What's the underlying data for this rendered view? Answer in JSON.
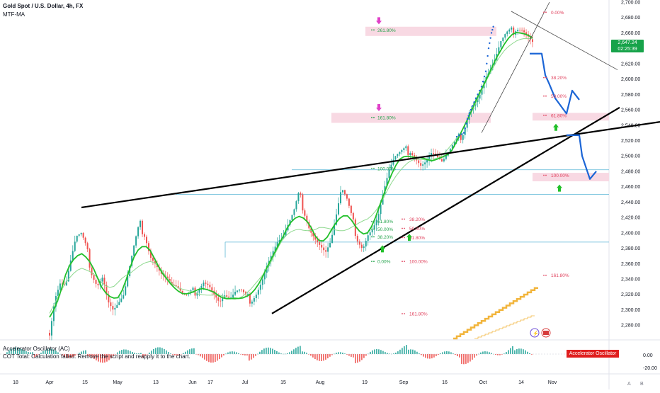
{
  "header": {
    "title": "Gold Spot / U.S. Dollar, 4h, FX",
    "subtitle": "MTF-MA"
  },
  "price_tag": {
    "price": "2,647.24",
    "countdown": "02:25:39"
  },
  "indicator": {
    "title": "Accelerator Oscillator (AC)",
    "error": "COT Total: Calculation failed. Remove the script and reapply it to the chart.",
    "badge": "Accelerator Oscillator (AC)"
  },
  "buttons": {
    "a": "A",
    "b": "B",
    "settings": "⚙"
  },
  "colors": {
    "up": "#26a69a",
    "down": "#ef5350",
    "ma": "#22c02a",
    "ma_slow": "#8fd98f",
    "trendline": "#000000",
    "projection": "#1b65d6",
    "fib_text": "#22a24a",
    "fib_text_red": "#e0405c",
    "fib_zone": "#f8d9e3",
    "hline": "#5bb6d6",
    "arrow_magenta": "#e040c8",
    "arrow_green": "#22c02a",
    "dots": "#1b65d6",
    "cot": "#f2b53c"
  },
  "chart_data": {
    "type": "candlestick",
    "title": "Gold Spot / U.S. Dollar, 4h, FX",
    "ylim": [
      2270,
      2700
    ],
    "y_ticks": [
      "2,700.00",
      "2,680.00",
      "2,660.00",
      "2,640.00",
      "2,620.00",
      "2,600.00",
      "2,580.00",
      "2,560.00",
      "2,540.00",
      "2,520.00",
      "2,500.00",
      "2,480.00",
      "2,460.00",
      "2,440.00",
      "2,420.00",
      "2,400.00",
      "2,380.00",
      "2,360.00",
      "2,340.00",
      "2,320.00",
      "2,300.00",
      "2,280.00"
    ],
    "x_ticks": [
      "18",
      "Apr",
      "15",
      "May",
      "13",
      "Jun",
      "17",
      "Jul",
      "15",
      "Aug",
      "19",
      "Sep",
      "16",
      "Oct",
      "14",
      "Nov"
    ],
    "close_path": [
      [
        0,
        2270
      ],
      [
        1,
        2316
      ],
      [
        2,
        2335
      ],
      [
        3,
        2330
      ],
      [
        4,
        2363
      ],
      [
        5,
        2392
      ],
      [
        6,
        2395
      ],
      [
        7,
        2376
      ],
      [
        8,
        2350
      ],
      [
        9,
        2335
      ],
      [
        10,
        2346
      ],
      [
        11,
        2313
      ],
      [
        12,
        2300
      ],
      [
        13,
        2308
      ],
      [
        14,
        2318
      ],
      [
        15,
        2350
      ],
      [
        16,
        2382
      ],
      [
        17,
        2410
      ],
      [
        18,
        2400
      ],
      [
        19,
        2373
      ],
      [
        20,
        2362
      ],
      [
        21,
        2349
      ],
      [
        22,
        2343
      ],
      [
        23,
        2332
      ],
      [
        24,
        2328
      ],
      [
        25,
        2318
      ],
      [
        26,
        2315
      ],
      [
        27,
        2322
      ],
      [
        28,
        2330
      ],
      [
        29,
        2340
      ],
      [
        30,
        2335
      ],
      [
        31,
        2322
      ],
      [
        32,
        2310
      ],
      [
        33,
        2318
      ],
      [
        34,
        2312
      ],
      [
        35,
        2320
      ],
      [
        36,
        2322
      ],
      [
        37,
        2313
      ],
      [
        38,
        2315
      ],
      [
        39,
        2325
      ],
      [
        40,
        2340
      ],
      [
        41,
        2360
      ],
      [
        42,
        2375
      ],
      [
        43,
        2388
      ],
      [
        44,
        2392
      ],
      [
        45,
        2408
      ],
      [
        46,
        2423
      ],
      [
        47,
        2448
      ],
      [
        48,
        2430
      ],
      [
        49,
        2408
      ],
      [
        50,
        2395
      ],
      [
        51,
        2385
      ],
      [
        52,
        2375
      ],
      [
        53,
        2388
      ],
      [
        54,
        2420
      ],
      [
        55,
        2455
      ],
      [
        56,
        2440
      ],
      [
        57,
        2415
      ],
      [
        58,
        2395
      ],
      [
        59,
        2383
      ],
      [
        60,
        2400
      ],
      [
        61,
        2408
      ],
      [
        62,
        2425
      ],
      [
        63,
        2455
      ],
      [
        64,
        2480
      ],
      [
        65,
        2495
      ],
      [
        66,
        2500
      ],
      [
        67,
        2505
      ],
      [
        68,
        2510
      ],
      [
        69,
        2500
      ],
      [
        70,
        2490
      ],
      [
        71,
        2495
      ],
      [
        72,
        2505
      ],
      [
        73,
        2498
      ],
      [
        74,
        2490
      ],
      [
        75,
        2500
      ],
      [
        76,
        2510
      ],
      [
        77,
        2520
      ],
      [
        78,
        2535
      ],
      [
        79,
        2560
      ],
      [
        80,
        2570
      ],
      [
        81,
        2580
      ],
      [
        82,
        2600
      ],
      [
        83,
        2610
      ],
      [
        84,
        2625
      ],
      [
        85,
        2645
      ],
      [
        86,
        2655
      ],
      [
        87,
        2660
      ],
      [
        88,
        2670
      ],
      [
        89,
        2668
      ],
      [
        90,
        2660
      ],
      [
        91,
        2650
      ]
    ],
    "fib_levels": [
      {
        "label": "261.80%",
        "price": 2662,
        "zone": true
      },
      {
        "label": "161.80%",
        "price": 2548,
        "zone": true
      },
      {
        "label": "100.00%",
        "price": 2482
      },
      {
        "label": "61.80%",
        "price": 2413
      },
      {
        "label": "50.00%",
        "price": 2403
      },
      {
        "label": "38.20%",
        "price": 2393
      },
      {
        "label": "0.00%",
        "price": 2361
      },
      {
        "label": "38.20%",
        "price": 2416,
        "red": true
      },
      {
        "label": "50.00%",
        "price": 2404,
        "red": true
      },
      {
        "label": "61.80%",
        "price": 2392,
        "red": true
      },
      {
        "label": "100.00%",
        "price": 2361,
        "red": true
      },
      {
        "label": "161.80%",
        "price": 2293,
        "red": true
      },
      {
        "label": "0.00%",
        "price": 2685,
        "red": true
      },
      {
        "label": "38.20%",
        "price": 2600,
        "red": true
      },
      {
        "label": "50.00%",
        "price": 2576,
        "red": true
      },
      {
        "label": "61.80%",
        "price": 2551,
        "red": true,
        "zone": true
      },
      {
        "label": "100.00%",
        "price": 2473,
        "red": true,
        "zone": true
      },
      {
        "label": "161.80%",
        "price": 2343,
        "red": true
      }
    ],
    "horizontal_lines": [
      2482,
      2450,
      2388
    ],
    "indicator_ticks": [
      "0.00",
      "-20.00"
    ],
    "legend": "top-left"
  }
}
